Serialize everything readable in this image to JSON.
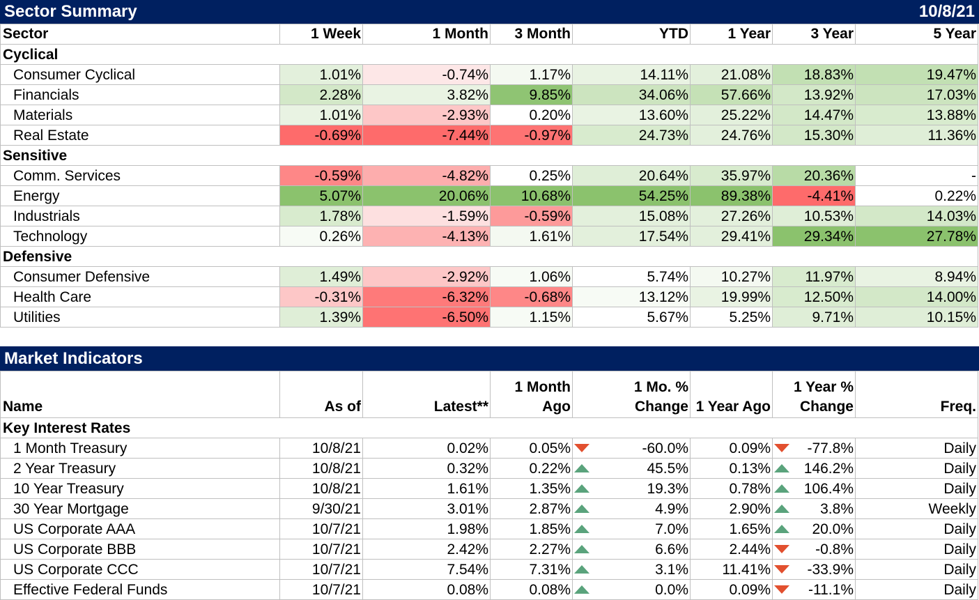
{
  "sector_summary": {
    "title": "Sector Summary",
    "date": "10/8/21",
    "headers": [
      "Sector",
      "1 Week",
      "1 Month",
      "3 Month",
      "YTD",
      "1 Year",
      "3 Year",
      "5 Year"
    ],
    "groups": [
      {
        "name": "Cyclical",
        "rows": [
          {
            "name": "Consumer Cyclical",
            "values": [
              "1.01%",
              "-0.74%",
              "1.17%",
              "14.11%",
              "21.08%",
              "18.83%",
              "19.47%"
            ],
            "colors": [
              "#e3f0dc",
              "#fde7e7",
              "#f4f9f1",
              "#e9f3e3",
              "#e3f0dc",
              "#c2e0b3",
              "#c2e0b3"
            ]
          },
          {
            "name": "Financials",
            "values": [
              "2.28%",
              "3.82%",
              "9.85%",
              "34.06%",
              "57.66%",
              "13.92%",
              "17.03%"
            ],
            "colors": [
              "#d3e8c8",
              "#e9f3e3",
              "#8fc473",
              "#cce4bf",
              "#c5e1b6",
              "#d3e8c8",
              "#cce4bf"
            ]
          },
          {
            "name": "Materials",
            "values": [
              "1.01%",
              "-2.93%",
              "0.20%",
              "13.60%",
              "25.22%",
              "14.47%",
              "13.88%"
            ],
            "colors": [
              "#e9f3e3",
              "#fdc7c7",
              "#ffffff",
              "#e9f3e3",
              "#e3f0dc",
              "#d3e8c8",
              "#d8ebce"
            ]
          },
          {
            "name": "Real Estate",
            "values": [
              "-0.69%",
              "-7.44%",
              "-0.97%",
              "24.73%",
              "24.76%",
              "15.30%",
              "11.36%"
            ],
            "colors": [
              "#fe6b6b",
              "#fe6b6b",
              "#fe7373",
              "#d8ebce",
              "#e3f0dc",
              "#d3e8c8",
              "#dfeed7"
            ]
          }
        ]
      },
      {
        "name": "Sensitive",
        "rows": [
          {
            "name": "Comm. Services",
            "values": [
              "-0.59%",
              "-4.82%",
              "0.25%",
              "20.64%",
              "35.97%",
              "20.36%",
              "-"
            ],
            "colors": [
              "#fe8787",
              "#fdadad",
              "#ffffff",
              "#dfeed7",
              "#d8ebce",
              "#b8dba6",
              "#ffffff"
            ]
          },
          {
            "name": "Energy",
            "values": [
              "5.07%",
              "20.06%",
              "10.68%",
              "54.25%",
              "89.38%",
              "-4.41%",
              "0.22%"
            ],
            "colors": [
              "#8bc26d",
              "#8bc26d",
              "#8bc26d",
              "#8bc26d",
              "#8bc26d",
              "#fe6b6b",
              "#ffffff"
            ]
          },
          {
            "name": "Industrials",
            "values": [
              "1.78%",
              "-1.59%",
              "-0.59%",
              "15.08%",
              "27.26%",
              "10.53%",
              "14.03%"
            ],
            "colors": [
              "#d8ebce",
              "#fde0e0",
              "#fd9a9a",
              "#e3f0dc",
              "#e3f0dc",
              "#dfeed7",
              "#d3e8c8"
            ]
          },
          {
            "name": "Technology",
            "values": [
              "0.26%",
              "-4.13%",
              "1.61%",
              "17.54%",
              "29.41%",
              "29.34%",
              "27.78%"
            ],
            "colors": [
              "#f7fbf5",
              "#fdb2b2",
              "#f4f9f1",
              "#e3f0dc",
              "#e3f0dc",
              "#8bc26d",
              "#8bc26d"
            ]
          }
        ]
      },
      {
        "name": "Defensive",
        "rows": [
          {
            "name": "Consumer Defensive",
            "values": [
              "1.49%",
              "-2.92%",
              "1.06%",
              "5.74%",
              "10.27%",
              "11.97%",
              "8.94%"
            ],
            "colors": [
              "#dfeed7",
              "#fdc7c7",
              "#f7fbf5",
              "#ffffff",
              "#f4f9f1",
              "#d8ebce",
              "#e9f3e3"
            ]
          },
          {
            "name": "Health Care",
            "values": [
              "-0.31%",
              "-6.32%",
              "-0.68%",
              "13.12%",
              "19.99%",
              "12.50%",
              "14.00%"
            ],
            "colors": [
              "#fdc7c7",
              "#fe7a7a",
              "#fe8787",
              "#f7fbf5",
              "#e9f3e3",
              "#d8ebce",
              "#d3e8c8"
            ]
          },
          {
            "name": "Utilities",
            "values": [
              "1.39%",
              "-6.50%",
              "1.15%",
              "5.67%",
              "5.25%",
              "9.71%",
              "10.15%"
            ],
            "colors": [
              "#dfeed7",
              "#fe7373",
              "#f7fbf5",
              "#ffffff",
              "#ffffff",
              "#dfeed7",
              "#dfeed7"
            ]
          }
        ]
      }
    ]
  },
  "market_indicators": {
    "title": "Market Indicators",
    "headers": [
      {
        "line1": "",
        "line2": "Name"
      },
      {
        "line1": "",
        "line2": "As of"
      },
      {
        "line1": "",
        "line2": "Latest**"
      },
      {
        "line1": "1 Month",
        "line2": "Ago"
      },
      {
        "line1": "1 Mo. %",
        "line2": "Change"
      },
      {
        "line1": "",
        "line2": "1 Year Ago"
      },
      {
        "line1": "1 Year %",
        "line2": "Change"
      },
      {
        "line1": "",
        "line2": "Freq."
      }
    ],
    "group": "Key Interest Rates",
    "rows": [
      {
        "name": "1 Month Treasury",
        "as_of": "10/8/21",
        "latest": "0.02%",
        "month_ago": "0.05%",
        "mo_dir": "down",
        "mo_change": "-60.0%",
        "year_ago": "0.09%",
        "yr_dir": "down",
        "yr_change": "-77.8%",
        "freq": "Daily"
      },
      {
        "name": "2 Year Treasury",
        "as_of": "10/8/21",
        "latest": "0.32%",
        "month_ago": "0.22%",
        "mo_dir": "up",
        "mo_change": "45.5%",
        "year_ago": "0.13%",
        "yr_dir": "up",
        "yr_change": "146.2%",
        "freq": "Daily"
      },
      {
        "name": "10 Year Treasury",
        "as_of": "10/8/21",
        "latest": "1.61%",
        "month_ago": "1.35%",
        "mo_dir": "up",
        "mo_change": "19.3%",
        "year_ago": "0.78%",
        "yr_dir": "up",
        "yr_change": "106.4%",
        "freq": "Daily"
      },
      {
        "name": "30 Year Mortgage",
        "as_of": "9/30/21",
        "latest": "3.01%",
        "month_ago": "2.87%",
        "mo_dir": "up",
        "mo_change": "4.9%",
        "year_ago": "2.90%",
        "yr_dir": "up",
        "yr_change": "3.8%",
        "freq": "Weekly"
      },
      {
        "name": "US Corporate AAA",
        "as_of": "10/7/21",
        "latest": "1.98%",
        "month_ago": "1.85%",
        "mo_dir": "up",
        "mo_change": "7.0%",
        "year_ago": "1.65%",
        "yr_dir": "up",
        "yr_change": "20.0%",
        "freq": "Daily"
      },
      {
        "name": "US Corporate BBB",
        "as_of": "10/7/21",
        "latest": "2.42%",
        "month_ago": "2.27%",
        "mo_dir": "up",
        "mo_change": "6.6%",
        "year_ago": "2.44%",
        "yr_dir": "down",
        "yr_change": "-0.8%",
        "freq": "Daily"
      },
      {
        "name": "US Corporate CCC",
        "as_of": "10/7/21",
        "latest": "7.54%",
        "month_ago": "7.31%",
        "mo_dir": "up",
        "mo_change": "3.1%",
        "year_ago": "11.41%",
        "yr_dir": "down",
        "yr_change": "-33.9%",
        "freq": "Daily"
      },
      {
        "name": "Effective Federal Funds",
        "as_of": "10/7/21",
        "latest": "0.08%",
        "month_ago": "0.08%",
        "mo_dir": "up",
        "mo_change": "0.0%",
        "year_ago": "0.09%",
        "yr_dir": "down",
        "yr_change": "-11.1%",
        "freq": "Daily"
      }
    ]
  }
}
